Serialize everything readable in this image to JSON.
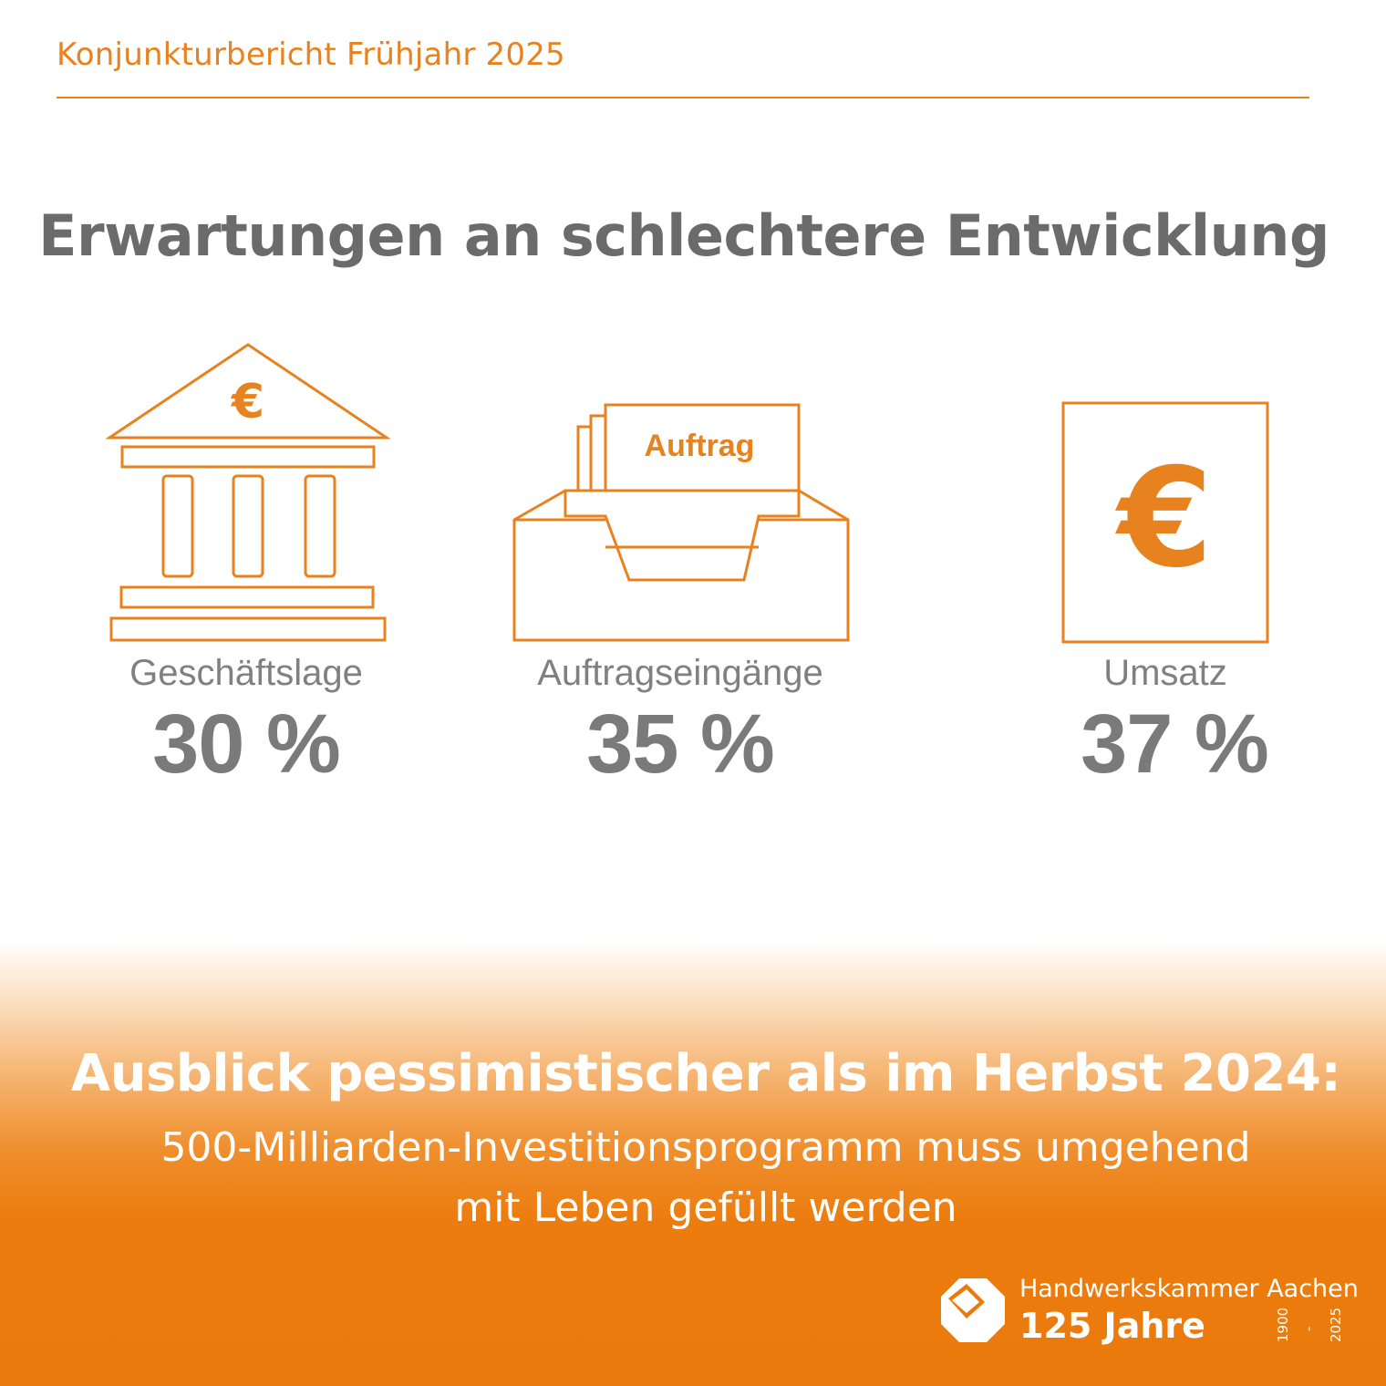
{
  "header": {
    "report_title": "Konjunkturbericht Frühjahr 2025",
    "headline": "Erwartungen an schlechtere Entwicklung"
  },
  "stats": [
    {
      "label": "Geschäftslage",
      "value": "30 %",
      "icon": "bank-icon",
      "icon_text": "€"
    },
    {
      "label": "Auftragseingänge",
      "value": "35 %",
      "icon": "order-tray-icon",
      "icon_text": "Auftrag"
    },
    {
      "label": "Umsatz",
      "value": "37 %",
      "icon": "euro-note-icon",
      "icon_text": "€"
    }
  ],
  "outlook": {
    "heading": "Ausblick pessimistischer als im Herbst 2024:",
    "line1": "500-Milliarden-Investitionsprogramm muss umgehend",
    "line2": "mit Leben gefüllt werden"
  },
  "footer": {
    "org_name": "Handwerkskammer Aachen",
    "anniversary": "125 Jahre",
    "year_start": "1900",
    "year_sep": "-",
    "year_end": "2025",
    "logo_icon": "hwk-logo-icon"
  },
  "colors": {
    "accent": "#e8821e",
    "text_gray": "#7a7a7a",
    "band_orange": "#ea7a0c"
  }
}
